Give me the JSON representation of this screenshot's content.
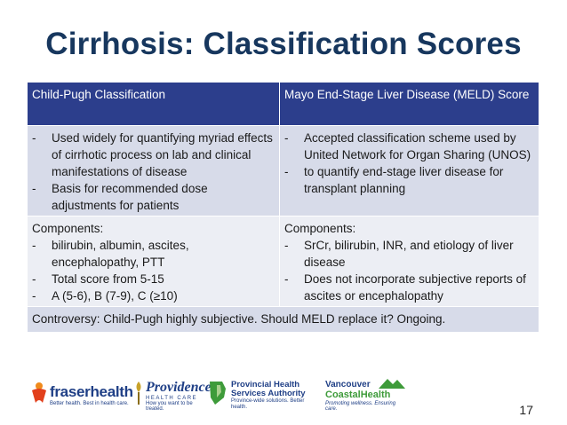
{
  "title": "Cirrhosis: Classification Scores",
  "table": {
    "headers": [
      "Child-Pugh Classification",
      "Mayo End-Stage Liver Disease (MELD) Score"
    ],
    "uses": {
      "left": [
        "Used widely for quantifying myriad effects of cirrhotic process on lab and clinical manifestations of disease",
        "Basis for recommended dose adjustments for patients"
      ],
      "right": [
        "Accepted classification scheme used by United Network for Organ Sharing (UNOS)",
        "to quantify end-stage liver disease for transplant planning"
      ]
    },
    "components": {
      "label": "Components:",
      "left": [
        "bilirubin, albumin, ascites, encephalopathy, PTT",
        "Total score from 5-15",
        "A (5-6), B (7-9), C (≥10)"
      ],
      "right": [
        "SrCr, bilirubin, INR, and etiology of liver disease",
        "Does not incorporate subjective reports of ascites or encephalopathy"
      ]
    },
    "controversy": "Controversy:  Child-Pugh highly subjective. Should MELD replace it? Ongoing."
  },
  "bullet": "-",
  "footer": {
    "logos": {
      "fraser": {
        "name": "fraserhealth",
        "tagline": "Better health. Best in health care."
      },
      "providence": {
        "name": "Providence",
        "sub": "HEALTH CARE",
        "tagline": "How you want to be treated."
      },
      "phsa": {
        "line1": "Provincial Health",
        "line2": "Services Authority",
        "tagline": "Province-wide solutions. Better health."
      },
      "vch": {
        "line1": "Vancouver",
        "line2": "CoastalHealth",
        "tagline": "Promoting wellness. Ensuring care."
      }
    },
    "page_number": "17"
  },
  "colors": {
    "title": "#17375e",
    "header_bg": "#2c3e8c",
    "row_dark": "#d7dbe9",
    "row_light": "#eceef4"
  }
}
